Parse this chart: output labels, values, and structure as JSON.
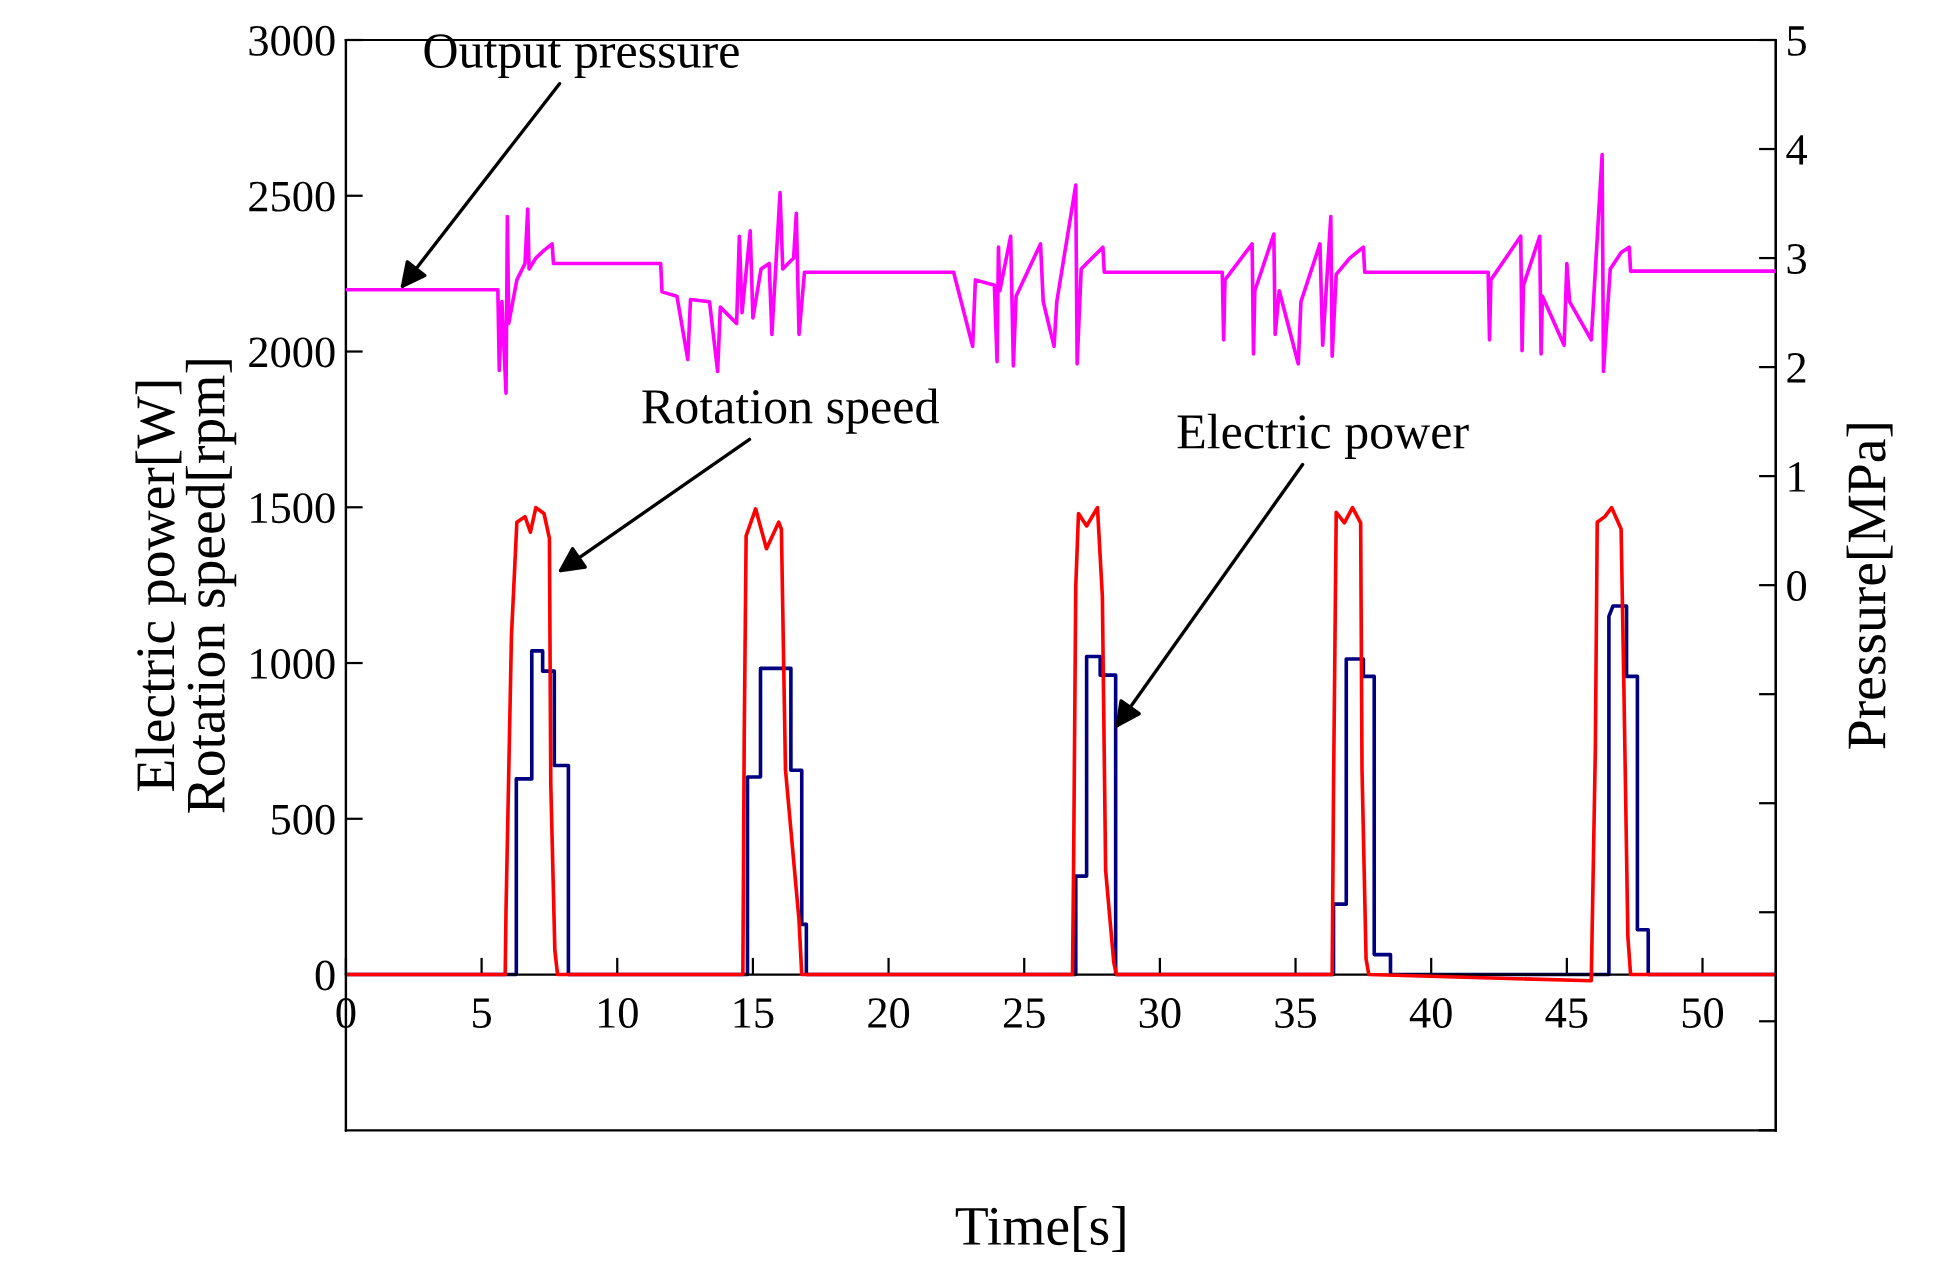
{
  "chart_data": {
    "type": "line",
    "xlabel": "Time[s]",
    "ylabel": "Electric power[W]\nRotation speed[rpm]",
    "y2label": "Pressure[MPa]",
    "xlim": [
      0,
      52.7
    ],
    "xticks": [
      0,
      5,
      10,
      15,
      20,
      25,
      30,
      35,
      40,
      45,
      50
    ],
    "ylim": [
      -500,
      3000
    ],
    "yticks": [
      0,
      500,
      1000,
      1500,
      2000,
      2500,
      3000
    ],
    "y2lim": [
      -5,
      5
    ],
    "y2ticks": [
      {
        "value": -5,
        "label": null
      },
      {
        "value": -4,
        "label": null
      },
      {
        "value": -3,
        "label": null
      },
      {
        "value": -2,
        "label": null
      },
      {
        "value": -1,
        "label": null
      },
      0,
      1,
      2,
      3,
      4,
      5
    ],
    "grid": false,
    "marker": "none",
    "line_style": "solid",
    "series": [
      {
        "color": "#000080",
        "x": [
          0,
          6.28,
          6.28,
          6.85,
          6.85,
          7.25,
          7.25,
          7.68,
          7.68,
          8.2,
          8.2,
          14.8,
          14.8,
          15.28,
          15.28,
          16.4,
          16.4,
          16.8,
          16.8,
          16.97,
          16.97,
          26.9,
          26.9,
          27.3,
          27.3,
          27.8,
          27.8,
          28.37,
          28.37,
          36.4,
          36.4,
          36.87,
          36.87,
          37.5,
          37.5,
          37.9,
          37.9,
          38.5,
          38.5,
          46.55,
          46.55,
          46.7,
          47.2,
          47.2,
          47.6,
          47.6,
          48.0,
          48.0,
          52.7
        ],
        "values": [
          0,
          0,
          628,
          628,
          1039,
          1039,
          974,
          974,
          671,
          671,
          0,
          0,
          634,
          634,
          983,
          983,
          656,
          656,
          161,
          161,
          0,
          0,
          316,
          316,
          1021,
          1021,
          961,
          961,
          0,
          0,
          226,
          226,
          1013,
          1013,
          957,
          957,
          64,
          64,
          0,
          0,
          1150,
          1183,
          1183,
          957,
          957,
          144,
          144,
          0,
          0
        ]
      },
      {
        "color": "#ff0000",
        "x": [
          0,
          5.87,
          5.9,
          6.1,
          6.3,
          6.6,
          6.8,
          7.0,
          7.3,
          7.5,
          7.55,
          7.7,
          7.8,
          14.63,
          14.68,
          14.75,
          15.1,
          15.5,
          15.95,
          16.05,
          16.2,
          16.7,
          16.8,
          26.78,
          26.82,
          26.9,
          27.0,
          27.3,
          27.7,
          27.88,
          28.0,
          28.3,
          28.4,
          36.35,
          36.4,
          36.5,
          36.8,
          37.1,
          37.4,
          37.45,
          37.6,
          37.7,
          45.9,
          46.05,
          46.12,
          46.4,
          46.65,
          47.0,
          47.1,
          47.25,
          47.35,
          52.7
        ],
        "values": [
          0,
          0,
          206,
          1086,
          1452,
          1470,
          1420,
          1499,
          1480,
          1400,
          613,
          77,
          0,
          0,
          763,
          1408,
          1495,
          1367,
          1452,
          1430,
          658,
          174,
          0,
          0,
          355,
          1247,
          1480,
          1440,
          1499,
          1215,
          335,
          39,
          0,
          0,
          593,
          1484,
          1450,
          1499,
          1450,
          658,
          50,
          0,
          -20,
          722,
          1452,
          1470,
          1499,
          1430,
          935,
          120,
          0,
          0
        ]
      },
      {
        "color": "#ff00ff",
        "axis": "y2",
        "x": [
          0,
          5.6,
          5.65,
          5.75,
          5.9,
          5.95,
          6.0,
          6.3,
          6.6,
          6.7,
          6.75,
          7.0,
          7.3,
          7.6,
          7.65,
          11.6,
          11.65,
          12.2,
          12.6,
          12.7,
          13.4,
          13.7,
          13.8,
          14.4,
          14.5,
          14.6,
          14.9,
          15.0,
          15.3,
          15.6,
          15.7,
          16.0,
          16.1,
          16.5,
          16.6,
          16.7,
          16.9,
          22.4,
          22.45,
          23.1,
          23.2,
          23.9,
          24.0,
          24.05,
          24.1,
          24.5,
          24.6,
          24.7,
          25.6,
          25.7,
          26.1,
          26.2,
          26.9,
          26.95,
          27.1,
          27.5,
          27.9,
          27.95,
          32.3,
          32.35,
          32.4,
          33.4,
          33.45,
          33.5,
          34.2,
          34.25,
          34.4,
          35.1,
          35.2,
          35.9,
          36.0,
          36.3,
          36.35,
          36.5,
          37.0,
          37.5,
          37.55,
          42.1,
          42.15,
          42.2,
          43.3,
          43.35,
          43.4,
          44.0,
          44.05,
          44.1,
          44.9,
          45.0,
          45.1,
          45.9,
          46.3,
          46.35,
          46.6,
          47.0,
          47.3,
          47.35,
          52.7
        ],
        "values": [
          2.71,
          2.71,
          1.97,
          2.6,
          1.76,
          3.38,
          2.4,
          2.8,
          2.95,
          3.45,
          2.9,
          3.0,
          3.07,
          3.13,
          2.95,
          2.95,
          2.69,
          2.65,
          2.07,
          2.62,
          2.6,
          1.96,
          2.55,
          2.4,
          3.2,
          2.5,
          3.25,
          2.45,
          2.9,
          2.95,
          2.3,
          3.6,
          2.9,
          3.0,
          3.41,
          2.3,
          2.87,
          2.87,
          2.82,
          2.19,
          2.8,
          2.75,
          2.05,
          3.1,
          2.7,
          3.2,
          2.01,
          2.65,
          3.13,
          2.6,
          2.19,
          2.6,
          3.67,
          2.03,
          2.9,
          3.0,
          3.1,
          2.87,
          2.87,
          2.25,
          2.8,
          3.13,
          2.12,
          2.7,
          3.22,
          2.3,
          2.7,
          2.03,
          2.6,
          3.13,
          2.2,
          3.38,
          2.1,
          2.85,
          3.0,
          3.1,
          2.87,
          2.87,
          2.25,
          2.8,
          3.2,
          2.15,
          2.75,
          3.2,
          2.12,
          2.65,
          2.2,
          2.95,
          2.6,
          2.25,
          3.95,
          1.96,
          2.9,
          3.05,
          3.1,
          2.88,
          2.88
        ]
      }
    ],
    "annotations": [
      {
        "text": "Output pressure",
        "x": 2.0,
        "y": 2200
      },
      {
        "text": "Rotation speed",
        "x": 7.8,
        "y": 1290
      },
      {
        "text": "Electric power",
        "x": 28.35,
        "y": 790
      }
    ]
  }
}
